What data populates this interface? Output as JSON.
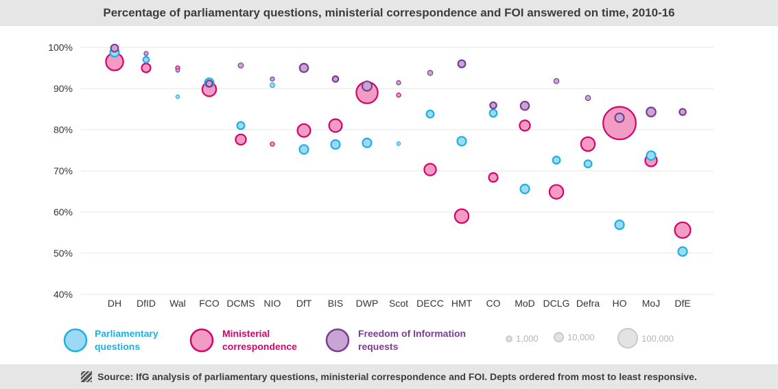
{
  "title": "Percentage of parliamentary questions, ministerial correspondence and FOI answered on time, 2010-16",
  "source": "Source: IfG analysis of parliamentary questions, ministerial correspondence and FOI. Depts ordered from most to least responsive.",
  "colors": {
    "pq_fill": "#9dd9f3",
    "pq_stroke": "#1ab1e4",
    "mc_fill": "#f29cc4",
    "mc_stroke": "#d8006c",
    "foi_fill": "#c8a6d4",
    "foi_stroke": "#7d3c93",
    "grid": "#e4e4e4",
    "axis_text": "#333333"
  },
  "legend": {
    "pq_label": [
      "Parliamentary",
      "questions"
    ],
    "mc_label": [
      "Ministerial",
      "correspondence"
    ],
    "foi_label": [
      "Freedom of Information",
      "requests"
    ],
    "size_labels": [
      "1,000",
      "10,000",
      "100,000"
    ]
  },
  "chart_data": {
    "type": "scatter",
    "title": "Percentage of parliamentary questions, ministerial correspondence and FOI answered on time, 2010-16",
    "categories": [
      "DH",
      "DfID",
      "Wal",
      "FCO",
      "DCMS",
      "NIO",
      "DfT",
      "BIS",
      "DWP",
      "Scot",
      "DECC",
      "HMT",
      "CO",
      "MoD",
      "DCLG",
      "Defra",
      "HO",
      "MoJ",
      "DfE"
    ],
    "yticks": [
      "40%",
      "50%",
      "60%",
      "70%",
      "80%",
      "90%",
      "100%"
    ],
    "ylim": [
      40,
      100
    ],
    "bubble_size_reference": [
      1000,
      10000,
      100000
    ],
    "series": [
      {
        "name": "Parliamentary questions",
        "values": [
          98.8,
          97.0,
          88.0,
          91.4,
          81.0,
          90.8,
          75.2,
          76.4,
          76.8,
          76.6,
          83.8,
          77.2,
          84.0,
          65.6,
          72.6,
          71.7,
          56.9,
          73.7,
          50.4
        ],
        "sizes": [
          10000,
          3000,
          500,
          10000,
          6000,
          1500,
          10000,
          10000,
          10000,
          500,
          6000,
          10000,
          6000,
          10000,
          6000,
          6000,
          10000,
          10000,
          10000
        ]
      },
      {
        "name": "Ministerial correspondence",
        "values": [
          96.5,
          95.0,
          95.0,
          89.8,
          77.6,
          76.5,
          79.8,
          81.0,
          89.0,
          88.4,
          70.3,
          59.0,
          68.4,
          81.0,
          64.9,
          76.5,
          81.6,
          72.5,
          55.6
        ],
        "sizes": [
          50000,
          10000,
          1000,
          30000,
          15000,
          1000,
          25000,
          25000,
          80000,
          1000,
          20000,
          30000,
          10000,
          15000,
          30000,
          30000,
          200000,
          20000,
          40000
        ]
      },
      {
        "name": "Freedom of Information requests",
        "values": [
          99.8,
          98.5,
          94.4,
          91.2,
          95.6,
          92.3,
          95.0,
          92.3,
          90.6,
          91.4,
          93.8,
          96.0,
          85.9,
          85.8,
          91.8,
          87.7,
          82.9,
          84.3,
          84.3
        ],
        "sizes": [
          6000,
          1000,
          500,
          4000,
          2000,
          1000,
          9000,
          3000,
          12000,
          1000,
          2000,
          6000,
          4000,
          9000,
          2000,
          2000,
          10000,
          11000,
          4000
        ]
      }
    ]
  }
}
